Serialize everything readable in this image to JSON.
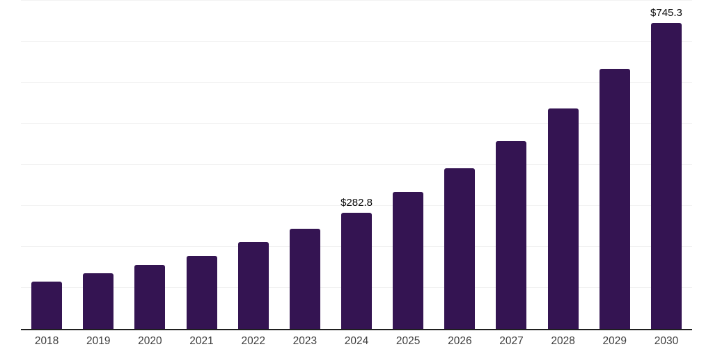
{
  "chart_data": {
    "type": "bar",
    "title": "",
    "xlabel": "",
    "ylabel": "",
    "categories": [
      "2018",
      "2019",
      "2020",
      "2021",
      "2022",
      "2023",
      "2024",
      "2025",
      "2026",
      "2027",
      "2028",
      "2029",
      "2030"
    ],
    "values": [
      115.2,
      136.0,
      156.4,
      178.4,
      211.8,
      243.9,
      282.8,
      333.7,
      391.3,
      457.4,
      537.0,
      633.6,
      745.3
    ],
    "data_labels": {
      "2024": "$282.8",
      "2030": "$745.3"
    },
    "ylim": [
      0,
      800
    ],
    "gridline_step": 100,
    "grid": "horizontal only, no y-axis tick labels, no x tick marks",
    "legend": "none",
    "colors": {
      "bar": "#341452",
      "gridline": "#f2f2f2",
      "axis_line": "#1f1f1f",
      "axis_label_text": "#3d3d3d",
      "data_label_text": "#0a0a0a",
      "background": "#ffffff"
    }
  }
}
